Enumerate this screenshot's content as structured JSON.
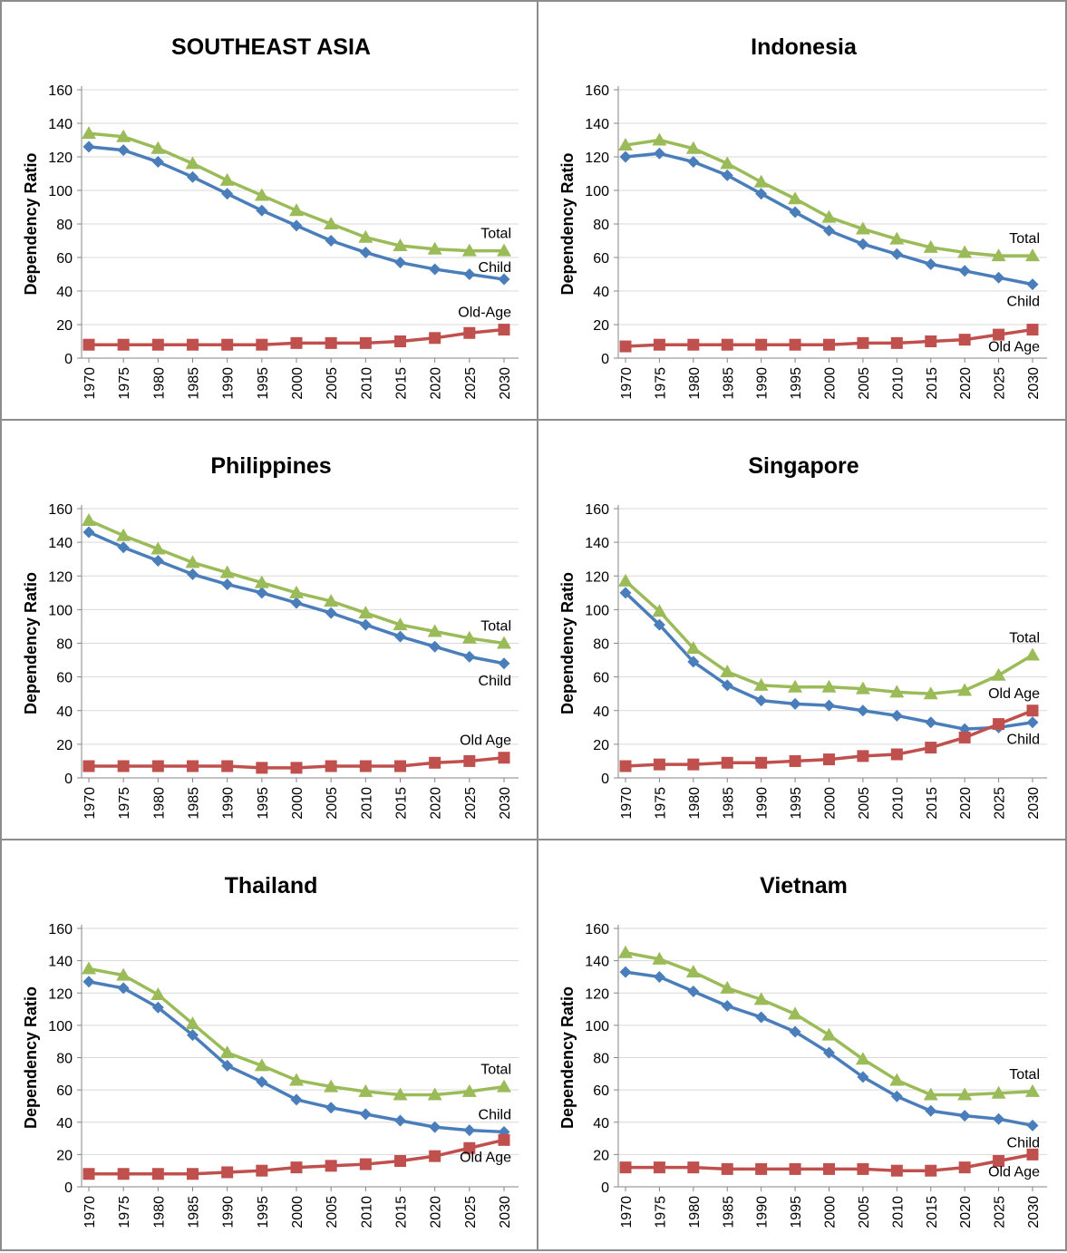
{
  "chart_data": [
    {
      "type": "line",
      "title": "SOUTHEAST ASIA",
      "ylabel": "Dependency Ratio",
      "xlabel": "",
      "ylim": [
        0,
        160
      ],
      "yticks": [
        0,
        20,
        40,
        60,
        80,
        100,
        120,
        140,
        160
      ],
      "x": [
        "1970",
        "1975",
        "1980",
        "1985",
        "1990",
        "1995",
        "2000",
        "2005",
        "2010",
        "2015",
        "2020",
        "2025",
        "2030"
      ],
      "grid": true,
      "series": [
        {
          "name": "Child",
          "color": "#4a7ebb",
          "marker": "diamond",
          "values": [
            126,
            124,
            117,
            108,
            98,
            88,
            79,
            70,
            63,
            57,
            53,
            50,
            47
          ],
          "label_position": "right-above"
        },
        {
          "name": "Old-Age",
          "color": "#c0504d",
          "marker": "square",
          "values": [
            8,
            8,
            8,
            8,
            8,
            8,
            9,
            9,
            9,
            10,
            12,
            15,
            17
          ],
          "label_position": "above"
        },
        {
          "name": "Total",
          "color": "#9bbb59",
          "marker": "triangle",
          "values": [
            134,
            132,
            125,
            116,
            106,
            97,
            88,
            80,
            72,
            67,
            65,
            64,
            64
          ],
          "label_position": "above"
        }
      ]
    },
    {
      "type": "line",
      "title": "Indonesia",
      "ylabel": "Dependency Ratio",
      "xlabel": "",
      "ylim": [
        0,
        160
      ],
      "yticks": [
        0,
        20,
        40,
        60,
        80,
        100,
        120,
        140,
        160
      ],
      "x": [
        "1970",
        "1975",
        "1980",
        "1985",
        "1990",
        "1995",
        "2000",
        "2005",
        "2010",
        "2015",
        "2020",
        "2025",
        "2030"
      ],
      "grid": true,
      "series": [
        {
          "name": "Child",
          "color": "#4a7ebb",
          "marker": "diamond",
          "values": [
            120,
            122,
            117,
            109,
            98,
            87,
            76,
            68,
            62,
            56,
            52,
            48,
            44
          ],
          "label_position": "below"
        },
        {
          "name": "Old Age",
          "color": "#c0504d",
          "marker": "square",
          "values": [
            7,
            8,
            8,
            8,
            8,
            8,
            8,
            9,
            9,
            10,
            11,
            14,
            17
          ],
          "label_position": "below"
        },
        {
          "name": "Total",
          "color": "#9bbb59",
          "marker": "triangle",
          "values": [
            127,
            130,
            125,
            116,
            105,
            95,
            84,
            77,
            71,
            66,
            63,
            61,
            61
          ],
          "label_position": "above"
        }
      ]
    },
    {
      "type": "line",
      "title": "Philippines",
      "ylabel": "Dependency Ratio",
      "xlabel": "",
      "ylim": [
        0,
        160
      ],
      "yticks": [
        0,
        20,
        40,
        60,
        80,
        100,
        120,
        140,
        160
      ],
      "x": [
        "1970",
        "1975",
        "1980",
        "1985",
        "1990",
        "1995",
        "2000",
        "2005",
        "2010",
        "2015",
        "2020",
        "2025",
        "2030"
      ],
      "grid": true,
      "series": [
        {
          "name": "Child",
          "color": "#4a7ebb",
          "marker": "diamond",
          "values": [
            146,
            137,
            129,
            121,
            115,
            110,
            104,
            98,
            91,
            84,
            78,
            72,
            68
          ],
          "label_position": "below"
        },
        {
          "name": "Old Age",
          "color": "#c0504d",
          "marker": "square",
          "values": [
            7,
            7,
            7,
            7,
            7,
            6,
            6,
            7,
            7,
            7,
            9,
            10,
            12
          ],
          "label_position": "above"
        },
        {
          "name": "Total",
          "color": "#9bbb59",
          "marker": "triangle",
          "values": [
            153,
            144,
            136,
            128,
            122,
            116,
            110,
            105,
            98,
            91,
            87,
            83,
            80
          ],
          "label_position": "above"
        }
      ]
    },
    {
      "type": "line",
      "title": "Singapore",
      "ylabel": "Dependency Ratio",
      "xlabel": "",
      "ylim": [
        0,
        160
      ],
      "yticks": [
        0,
        20,
        40,
        60,
        80,
        100,
        120,
        140,
        160
      ],
      "x": [
        "1970",
        "1975",
        "1980",
        "1985",
        "1990",
        "1995",
        "2000",
        "2005",
        "2010",
        "2015",
        "2020",
        "2025",
        "2030"
      ],
      "grid": true,
      "series": [
        {
          "name": "Child",
          "color": "#4a7ebb",
          "marker": "diamond",
          "values": [
            110,
            91,
            69,
            55,
            46,
            44,
            43,
            40,
            37,
            33,
            29,
            30,
            33
          ],
          "label_position": "below"
        },
        {
          "name": "Old Age",
          "color": "#c0504d",
          "marker": "square",
          "values": [
            7,
            8,
            8,
            9,
            9,
            10,
            11,
            13,
            14,
            18,
            24,
            32,
            40
          ],
          "label_position": "above"
        },
        {
          "name": "Total",
          "color": "#9bbb59",
          "marker": "triangle",
          "values": [
            117,
            99,
            77,
            63,
            55,
            54,
            54,
            53,
            51,
            50,
            52,
            61,
            73
          ],
          "label_position": "above"
        }
      ]
    },
    {
      "type": "line",
      "title": "Thailand",
      "ylabel": "Dependency Ratio",
      "xlabel": "",
      "ylim": [
        0,
        160
      ],
      "yticks": [
        0,
        20,
        40,
        60,
        80,
        100,
        120,
        140,
        160
      ],
      "x": [
        "1970",
        "1975",
        "1980",
        "1985",
        "1990",
        "1995",
        "2000",
        "2005",
        "2010",
        "2015",
        "2020",
        "2025",
        "2030"
      ],
      "grid": true,
      "series": [
        {
          "name": "Child",
          "color": "#4a7ebb",
          "marker": "diamond",
          "values": [
            127,
            123,
            111,
            94,
            75,
            65,
            54,
            49,
            45,
            41,
            37,
            35,
            34
          ],
          "label_position": "above"
        },
        {
          "name": "Old Age",
          "color": "#c0504d",
          "marker": "square",
          "values": [
            8,
            8,
            8,
            8,
            9,
            10,
            12,
            13,
            14,
            16,
            19,
            24,
            29
          ],
          "label_position": "below"
        },
        {
          "name": "Total",
          "color": "#9bbb59",
          "marker": "triangle",
          "values": [
            135,
            131,
            119,
            101,
            83,
            75,
            66,
            62,
            59,
            57,
            57,
            59,
            62
          ],
          "label_position": "above"
        }
      ]
    },
    {
      "type": "line",
      "title": "Vietnam",
      "ylabel": "Dependency Ratio",
      "xlabel": "",
      "ylim": [
        0,
        160
      ],
      "yticks": [
        0,
        20,
        40,
        60,
        80,
        100,
        120,
        140,
        160
      ],
      "x": [
        "1970",
        "1975",
        "1980",
        "1985",
        "1990",
        "1995",
        "2000",
        "2005",
        "2010",
        "2015",
        "2020",
        "2025",
        "2030"
      ],
      "grid": true,
      "series": [
        {
          "name": "Child",
          "color": "#4a7ebb",
          "marker": "diamond",
          "values": [
            133,
            130,
            121,
            112,
            105,
            96,
            83,
            68,
            56,
            47,
            44,
            42,
            38
          ],
          "label_position": "below"
        },
        {
          "name": "Old Age",
          "color": "#c0504d",
          "marker": "square",
          "values": [
            12,
            12,
            12,
            11,
            11,
            11,
            11,
            11,
            10,
            10,
            12,
            16,
            20
          ],
          "label_position": "below"
        },
        {
          "name": "Total",
          "color": "#9bbb59",
          "marker": "triangle",
          "values": [
            145,
            141,
            133,
            123,
            116,
            107,
            94,
            79,
            66,
            57,
            57,
            58,
            59
          ],
          "label_position": "above"
        }
      ]
    }
  ]
}
